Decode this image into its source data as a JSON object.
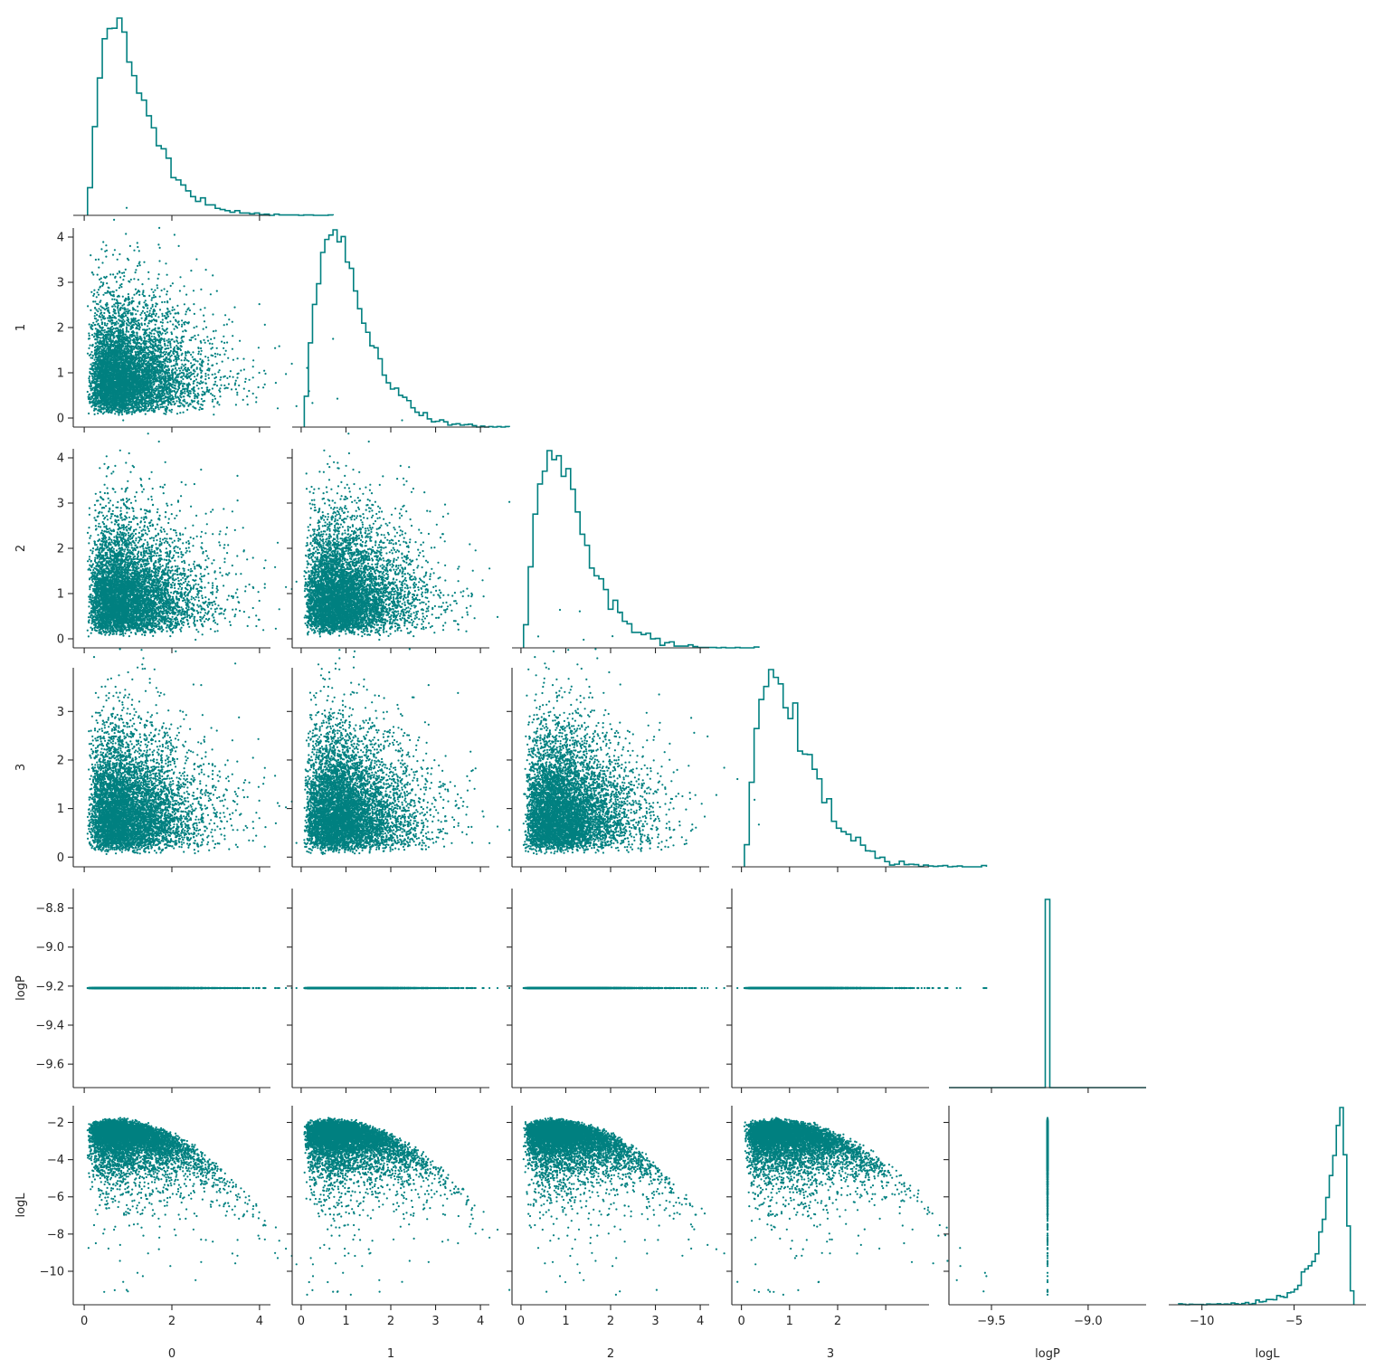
{
  "chart_data": {
    "type": "scatter",
    "kind": "corner-plot",
    "color": "#008080",
    "variables": [
      {
        "name": "0",
        "label": "0",
        "lim": [
          -0.25,
          4.25
        ],
        "ticks": [
          0,
          2,
          4
        ],
        "dist": "gamma",
        "shape": 2.5,
        "scale": 0.42
      },
      {
        "name": "1",
        "label": "1",
        "lim": [
          -0.2,
          4.2
        ],
        "ticks": [
          0,
          1,
          2,
          3,
          4
        ],
        "dist": "gamma",
        "shape": 2.5,
        "scale": 0.42
      },
      {
        "name": "2",
        "label": "2",
        "lim": [
          -0.2,
          4.2
        ],
        "ticks": [
          0,
          1,
          2,
          3,
          4
        ],
        "dist": "gamma",
        "shape": 2.5,
        "scale": 0.42
      },
      {
        "name": "3",
        "label": "3",
        "lim": [
          -0.2,
          3.9
        ],
        "ticks": [
          0,
          1,
          2,
          3
        ],
        "dist": "gamma",
        "shape": 2.5,
        "scale": 0.42
      },
      {
        "name": "logP",
        "label": "logP",
        "lim": [
          -9.72,
          -8.7
        ],
        "ticks": [
          -9.6,
          -9.4,
          -9.2,
          -9.0,
          -8.8
        ],
        "xticks": [
          -9.5,
          -9.0
        ],
        "constant": -9.21
      },
      {
        "name": "logL",
        "label": "logL",
        "lim": [
          -11.8,
          -1.1
        ],
        "ticks": [
          -10,
          -8,
          -6,
          -4,
          -2
        ],
        "xticks": [
          -10,
          -5
        ],
        "dist": "derived"
      }
    ],
    "x_tick_labels": {
      "0": [
        "0",
        "2",
        "4"
      ],
      "1": [
        "0",
        "1",
        "2",
        "3",
        "4"
      ],
      "2": [
        "0",
        "1",
        "2",
        "3",
        "4"
      ],
      "3": [
        "0",
        "1",
        "2"
      ],
      "logP": [
        "−9.5",
        "−9.0"
      ],
      "logL": [
        "−10",
        "−5"
      ]
    },
    "y_tick_labels": {
      "1": [
        "0",
        "1",
        "2",
        "3",
        "4"
      ],
      "2": [
        "0",
        "1",
        "2",
        "3",
        "4"
      ],
      "3": [
        "0",
        "1",
        "2",
        "3"
      ],
      "logP": [
        "−9.6",
        "−9.4",
        "−9.2",
        "−9.0",
        "−8.8"
      ],
      "logL": [
        "−10",
        "−8",
        "−6",
        "−4",
        "−2"
      ]
    },
    "n_samples": 6000,
    "hist_bins": 50
  }
}
